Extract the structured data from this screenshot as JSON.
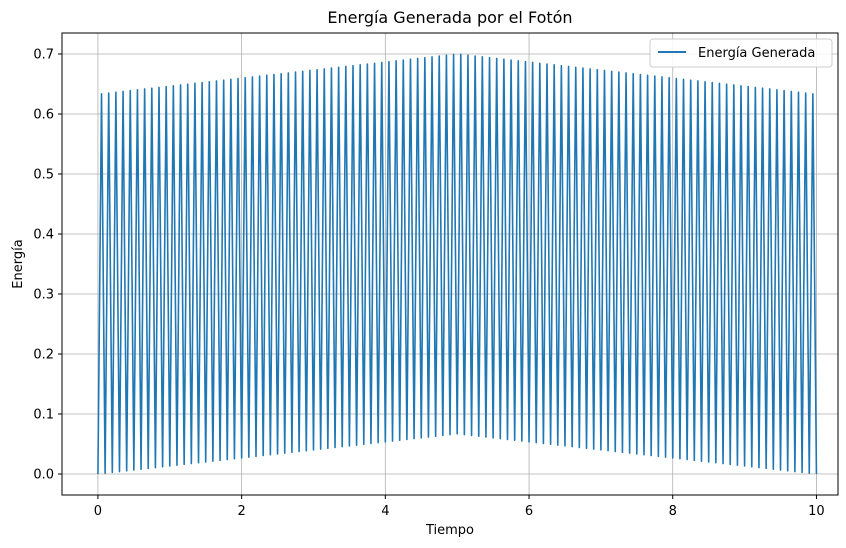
{
  "chart_data": {
    "type": "line",
    "title": "Energía Generada por el Fotón",
    "xlabel": "Tiempo",
    "ylabel": "Energía",
    "xlim": [
      -0.5,
      10.3
    ],
    "ylim": [
      -0.035,
      0.735
    ],
    "xticks": [
      0,
      2,
      4,
      6,
      8,
      10
    ],
    "xtick_labels": [
      "0",
      "2",
      "4",
      "6",
      "8",
      "10"
    ],
    "yticks": [
      0.0,
      0.1,
      0.2,
      0.3,
      0.4,
      0.5,
      0.6,
      0.7
    ],
    "ytick_labels": [
      "0.0",
      "0.1",
      "0.2",
      "0.3",
      "0.4",
      "0.5",
      "0.6",
      "0.7"
    ],
    "grid": true,
    "legend_position": "top-right",
    "series": [
      {
        "name": "Energía Generada",
        "color": "#1f77b4",
        "oscillation_count": 100,
        "x_range": [
          0,
          10
        ],
        "envelope_upper": {
          "x": [
            0,
            5,
            10
          ],
          "y": [
            0.633,
            0.7,
            0.633
          ]
        },
        "envelope_lower": {
          "x": [
            0,
            5,
            10
          ],
          "y": [
            0.0,
            0.067,
            0.0
          ]
        }
      }
    ]
  }
}
